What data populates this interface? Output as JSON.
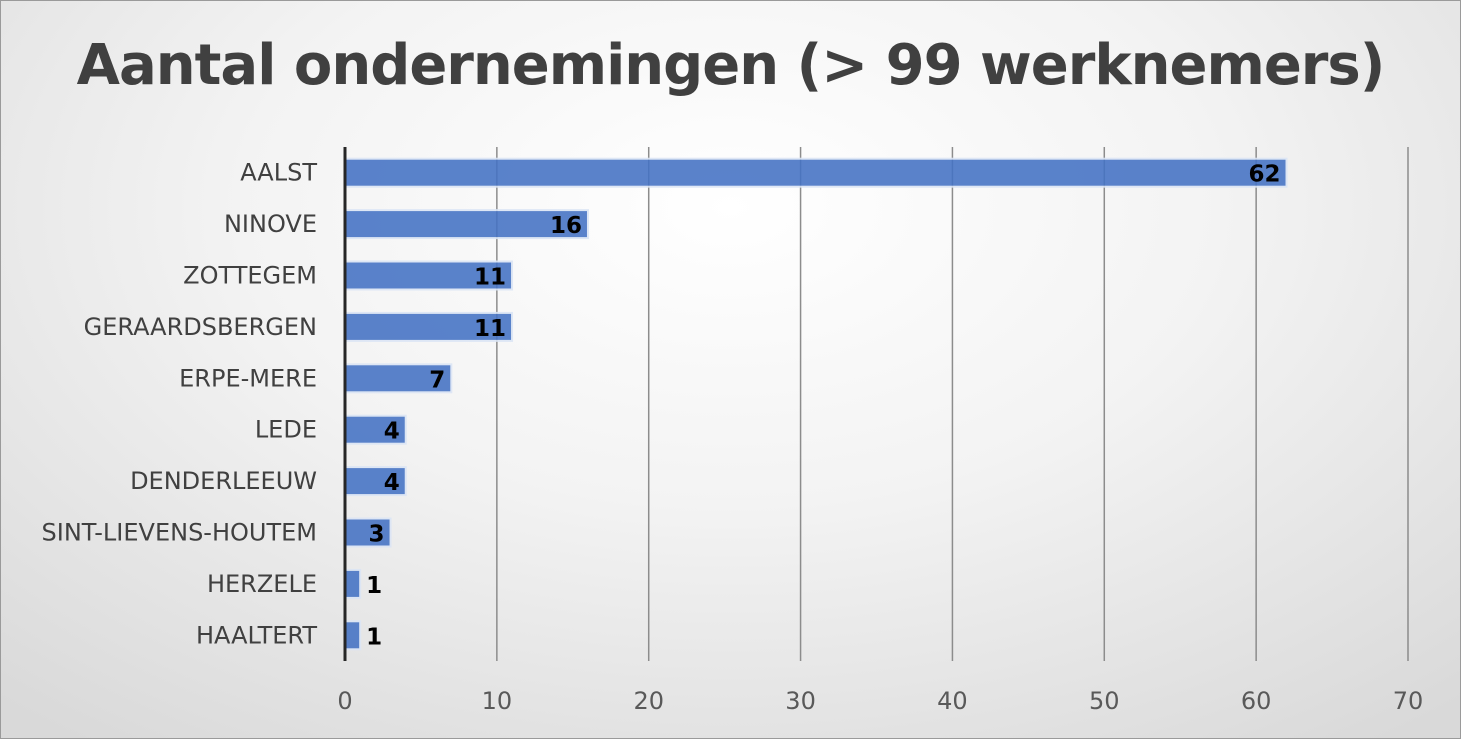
{
  "chart_data": {
    "type": "bar",
    "orientation": "horizontal",
    "title": "Aantal ondernemingen (> 99 werknemers)",
    "categories": [
      "AALST",
      "NINOVE",
      "ZOTTEGEM",
      "GERAARDSBERGEN",
      "ERPE-MERE",
      "LEDE",
      "DENDERLEEUW",
      "SINT-LIEVENS-HOUTEM",
      "HERZELE",
      "HAALTERT"
    ],
    "values": [
      62,
      16,
      11,
      11,
      7,
      4,
      4,
      3,
      1,
      1
    ],
    "xlim": [
      0,
      70
    ],
    "xticks": [
      0,
      10,
      20,
      30,
      40,
      50,
      60,
      70
    ],
    "grid": "vertical",
    "legend": "none",
    "bar_color": "#4472c4"
  }
}
